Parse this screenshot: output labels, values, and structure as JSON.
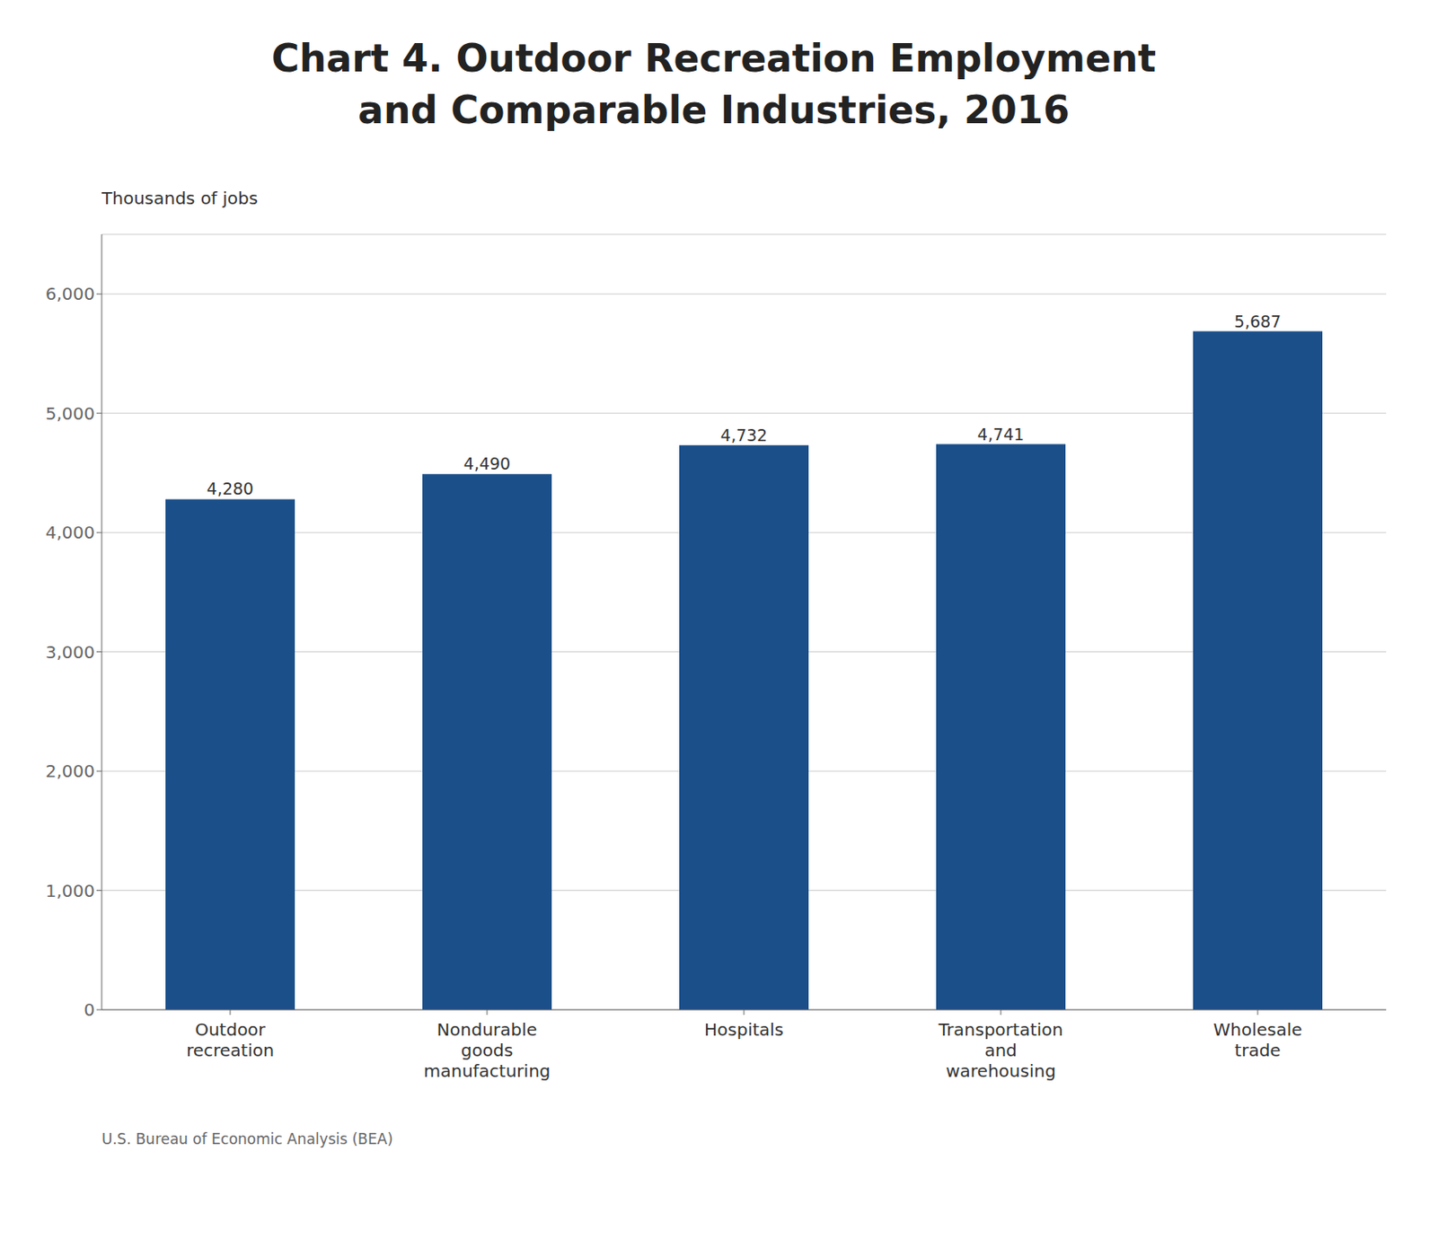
{
  "chart_data": {
    "type": "bar",
    "title": "Chart 4. Outdoor Recreation Employment\nand Comparable Industries, 2016",
    "y_label": "Thousands of jobs",
    "footnote": "U.S. Bureau of Economic Analysis (BEA)",
    "categories": [
      "Outdoor\nrecreation",
      "Nondurable\ngoods\nmanufacturing",
      "Hospitals",
      "Transportation\nand\nwarehousing",
      "Wholesale\ntrade"
    ],
    "values": [
      4280,
      4490,
      4732,
      4741,
      5687
    ],
    "value_labels": [
      "4,280",
      "4,490",
      "4,732",
      "4,741",
      "5,687"
    ],
    "data_labels": true,
    "color": "#1b4f8a",
    "ylim": [
      0,
      6500
    ],
    "yticks": [
      0,
      {
        "value": 1000,
        "label": "1,000"
      },
      {
        "value": 2000,
        "label": "2,000"
      },
      {
        "value": 3000,
        "label": "3,000"
      },
      {
        "value": 4000,
        "label": "4,000"
      },
      {
        "value": 5000,
        "label": "5,000"
      },
      {
        "value": 6000,
        "label": "6,000"
      }
    ],
    "grid": true
  }
}
